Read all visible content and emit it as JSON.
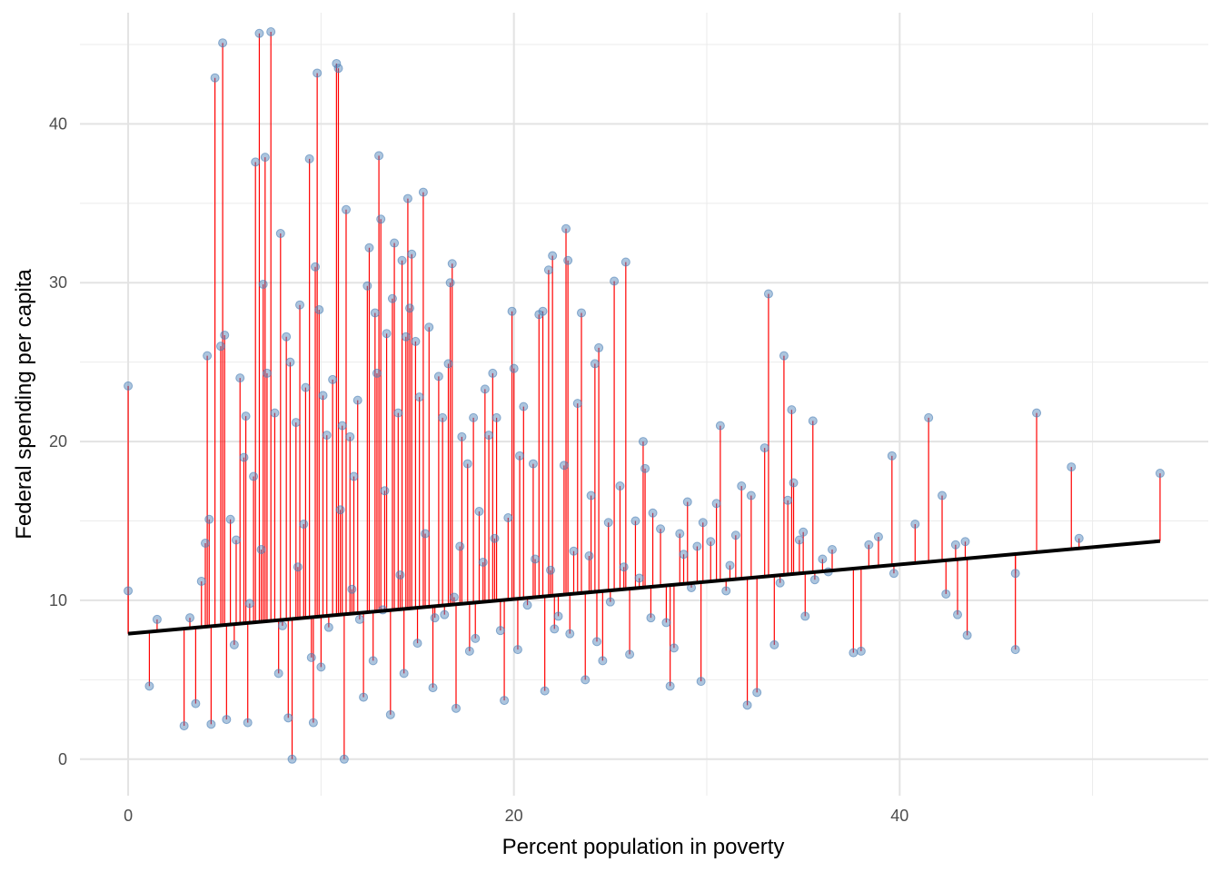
{
  "chart_data": {
    "type": "scatter",
    "title": "",
    "xlabel": "Percent population in poverty",
    "ylabel": "Federal spending per capita",
    "xlim": [
      -2.5,
      56
    ],
    "ylim": [
      -2.3,
      47
    ],
    "x_ticks": [
      0,
      20,
      40
    ],
    "y_ticks": [
      0,
      10,
      20,
      30,
      40
    ],
    "grid": true,
    "legend": "none",
    "point_color": "#4a7fb5",
    "residual_color": "#ff0000",
    "fit_line_color": "#000000",
    "fit_line": {
      "intercept": 7.9,
      "slope": 0.109
    },
    "points": [
      [
        0.0,
        23.5
      ],
      [
        0.0,
        10.6
      ],
      [
        1.1,
        4.6
      ],
      [
        1.5,
        8.8
      ],
      [
        2.9,
        2.1
      ],
      [
        3.2,
        8.9
      ],
      [
        3.5,
        3.5
      ],
      [
        3.8,
        11.2
      ],
      [
        4.0,
        13.6
      ],
      [
        4.1,
        25.4
      ],
      [
        4.2,
        15.1
      ],
      [
        4.3,
        2.2
      ],
      [
        4.5,
        42.9
      ],
      [
        4.8,
        26.0
      ],
      [
        4.9,
        45.1
      ],
      [
        5.0,
        26.7
      ],
      [
        5.1,
        2.5
      ],
      [
        5.3,
        15.1
      ],
      [
        5.6,
        13.8
      ],
      [
        5.8,
        24.0
      ],
      [
        6.0,
        19.0
      ],
      [
        6.1,
        21.6
      ],
      [
        6.2,
        2.3
      ],
      [
        6.5,
        17.8
      ],
      [
        6.6,
        37.6
      ],
      [
        6.8,
        45.7
      ],
      [
        7.0,
        29.9
      ],
      [
        7.1,
        37.9
      ],
      [
        7.2,
        24.3
      ],
      [
        7.4,
        45.8
      ],
      [
        7.6,
        21.8
      ],
      [
        7.9,
        33.1
      ],
      [
        8.2,
        26.6
      ],
      [
        8.3,
        2.6
      ],
      [
        8.4,
        25.0
      ],
      [
        8.5,
        0.0
      ],
      [
        8.7,
        21.2
      ],
      [
        8.9,
        28.6
      ],
      [
        9.2,
        23.4
      ],
      [
        9.4,
        37.8
      ],
      [
        9.6,
        2.3
      ],
      [
        9.7,
        31.0
      ],
      [
        9.8,
        43.2
      ],
      [
        9.9,
        28.3
      ],
      [
        10.1,
        22.9
      ],
      [
        10.3,
        20.4
      ],
      [
        10.6,
        23.9
      ],
      [
        10.8,
        43.8
      ],
      [
        10.9,
        43.5
      ],
      [
        11.1,
        21.0
      ],
      [
        11.2,
        0.0
      ],
      [
        11.3,
        34.6
      ],
      [
        11.5,
        20.3
      ],
      [
        11.7,
        17.8
      ],
      [
        11.9,
        22.6
      ],
      [
        12.2,
        3.9
      ],
      [
        12.4,
        29.8
      ],
      [
        12.5,
        32.2
      ],
      [
        12.8,
        28.1
      ],
      [
        12.9,
        24.3
      ],
      [
        13.0,
        38.0
      ],
      [
        13.1,
        34.0
      ],
      [
        13.4,
        26.8
      ],
      [
        13.6,
        2.8
      ],
      [
        13.7,
        29.0
      ],
      [
        13.8,
        32.5
      ],
      [
        14.0,
        21.8
      ],
      [
        14.2,
        31.4
      ],
      [
        14.4,
        26.6
      ],
      [
        14.5,
        35.3
      ],
      [
        14.6,
        28.4
      ],
      [
        14.7,
        31.8
      ],
      [
        14.9,
        26.3
      ],
      [
        15.1,
        22.8
      ],
      [
        15.3,
        35.7
      ],
      [
        15.6,
        27.2
      ],
      [
        15.8,
        4.5
      ],
      [
        16.1,
        24.1
      ],
      [
        16.3,
        21.5
      ],
      [
        16.6,
        24.9
      ],
      [
        16.7,
        30.0
      ],
      [
        16.8,
        31.2
      ],
      [
        17.0,
        3.2
      ],
      [
        17.3,
        20.3
      ],
      [
        17.6,
        18.6
      ],
      [
        17.9,
        21.5
      ],
      [
        18.2,
        15.6
      ],
      [
        18.5,
        23.3
      ],
      [
        18.7,
        20.4
      ],
      [
        18.9,
        24.3
      ],
      [
        19.1,
        21.5
      ],
      [
        19.5,
        3.7
      ],
      [
        19.7,
        15.2
      ],
      [
        19.9,
        28.2
      ],
      [
        20.0,
        24.6
      ],
      [
        20.3,
        19.1
      ],
      [
        20.5,
        22.2
      ],
      [
        21.0,
        18.6
      ],
      [
        21.3,
        28.0
      ],
      [
        21.5,
        28.2
      ],
      [
        21.6,
        4.3
      ],
      [
        21.8,
        30.8
      ],
      [
        22.0,
        31.7
      ],
      [
        22.3,
        9.0
      ],
      [
        22.6,
        18.5
      ],
      [
        22.7,
        33.4
      ],
      [
        22.8,
        31.4
      ],
      [
        23.3,
        22.4
      ],
      [
        23.5,
        28.1
      ],
      [
        23.7,
        5.0
      ],
      [
        24.0,
        16.6
      ],
      [
        24.2,
        24.9
      ],
      [
        24.4,
        25.9
      ],
      [
        24.6,
        6.2
      ],
      [
        24.9,
        14.9
      ],
      [
        25.2,
        30.1
      ],
      [
        25.5,
        17.2
      ],
      [
        25.8,
        31.3
      ],
      [
        26.0,
        6.6
      ],
      [
        26.3,
        15.0
      ],
      [
        26.7,
        20.0
      ],
      [
        26.8,
        18.3
      ],
      [
        27.2,
        15.5
      ],
      [
        27.6,
        14.5
      ],
      [
        28.1,
        4.6
      ],
      [
        28.3,
        7.0
      ],
      [
        28.6,
        14.2
      ],
      [
        29.0,
        16.2
      ],
      [
        29.5,
        13.4
      ],
      [
        29.7,
        4.9
      ],
      [
        29.8,
        14.9
      ],
      [
        30.2,
        13.7
      ],
      [
        30.5,
        16.1
      ],
      [
        30.7,
        21.0
      ],
      [
        31.0,
        10.6
      ],
      [
        31.5,
        14.1
      ],
      [
        31.8,
        17.2
      ],
      [
        32.1,
        3.4
      ],
      [
        32.3,
        16.6
      ],
      [
        32.6,
        4.2
      ],
      [
        33.0,
        19.6
      ],
      [
        33.2,
        29.3
      ],
      [
        33.5,
        7.2
      ],
      [
        34.0,
        25.4
      ],
      [
        34.2,
        16.3
      ],
      [
        34.4,
        22.0
      ],
      [
        34.5,
        17.4
      ],
      [
        34.8,
        13.8
      ],
      [
        35.0,
        14.3
      ],
      [
        35.1,
        9.0
      ],
      [
        35.5,
        21.3
      ],
      [
        35.6,
        11.3
      ],
      [
        36.3,
        11.8
      ],
      [
        36.5,
        13.2
      ],
      [
        37.6,
        6.7
      ],
      [
        38.0,
        6.8
      ],
      [
        38.4,
        13.5
      ],
      [
        38.9,
        14.0
      ],
      [
        39.6,
        19.1
      ],
      [
        39.7,
        11.7
      ],
      [
        40.8,
        14.8
      ],
      [
        41.5,
        21.5
      ],
      [
        42.2,
        16.6
      ],
      [
        42.4,
        10.4
      ],
      [
        42.9,
        13.5
      ],
      [
        43.0,
        9.1
      ],
      [
        43.4,
        13.7
      ],
      [
        43.5,
        7.8
      ],
      [
        46.0,
        6.9
      ],
      [
        46.0,
        11.7
      ],
      [
        47.1,
        21.8
      ],
      [
        48.9,
        18.4
      ],
      [
        49.3,
        13.9
      ],
      [
        53.5,
        18.0
      ],
      [
        5.5,
        7.2
      ],
      [
        6.3,
        9.8
      ],
      [
        7.8,
        5.4
      ],
      [
        8.8,
        12.1
      ],
      [
        9.5,
        6.4
      ],
      [
        10.4,
        8.3
      ],
      [
        11.6,
        10.7
      ],
      [
        12.7,
        6.2
      ],
      [
        13.2,
        9.4
      ],
      [
        14.1,
        11.6
      ],
      [
        15.0,
        7.3
      ],
      [
        15.9,
        8.9
      ],
      [
        16.9,
        10.2
      ],
      [
        17.7,
        6.8
      ],
      [
        18.4,
        12.4
      ],
      [
        19.3,
        8.1
      ],
      [
        20.7,
        9.7
      ],
      [
        21.9,
        11.9
      ],
      [
        22.9,
        7.9
      ],
      [
        23.9,
        12.8
      ],
      [
        25.0,
        9.9
      ],
      [
        26.5,
        11.4
      ],
      [
        27.9,
        8.6
      ],
      [
        29.2,
        10.8
      ],
      [
        31.2,
        12.2
      ],
      [
        33.8,
        11.1
      ],
      [
        36.0,
        12.6
      ],
      [
        6.9,
        13.2
      ],
      [
        8.0,
        8.4
      ],
      [
        9.1,
        14.8
      ],
      [
        10.0,
        5.8
      ],
      [
        11.0,
        15.7
      ],
      [
        12.0,
        8.8
      ],
      [
        13.3,
        16.9
      ],
      [
        14.3,
        5.4
      ],
      [
        15.4,
        14.2
      ],
      [
        16.4,
        9.1
      ],
      [
        17.2,
        13.4
      ],
      [
        18.0,
        7.6
      ],
      [
        19.0,
        13.9
      ],
      [
        20.2,
        6.9
      ],
      [
        21.1,
        12.6
      ],
      [
        22.1,
        8.2
      ],
      [
        23.1,
        13.1
      ],
      [
        24.3,
        7.4
      ],
      [
        25.7,
        12.1
      ],
      [
        27.1,
        8.9
      ],
      [
        28.8,
        12.9
      ]
    ]
  }
}
